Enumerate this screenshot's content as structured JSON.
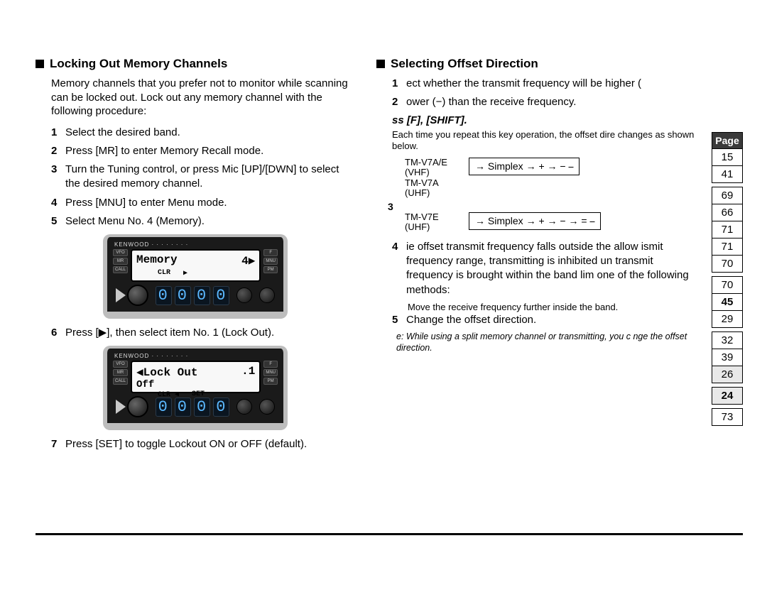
{
  "left": {
    "heading": "Locking Out Memory Channels",
    "intro": "Memory channels that you prefer not to monitor while scanning can be locked out. Lock out any memory channel with the following procedure:",
    "steps": [
      "Select the desired band.",
      "Press [MR] to enter Memory Recall mode.",
      "Turn the Tuning control, or press Mic [UP]/[DWN] to select the desired memory channel.",
      "Press [MNU] to enter Menu mode.",
      "Select Menu No. 4 (Memory).",
      "Press [▶], then select item No. 1 (Lock Out).",
      "Press [SET] to toggle Lockout ON or OFF (default)."
    ],
    "lcd1_line1_left": "Memory",
    "lcd1_line1_right": "4▶",
    "lcd1_line2_a": "CLR",
    "lcd1_line2_b": "▶",
    "lcd2_line1_left": "◀Lock Out",
    "lcd2_line1_right": ".1",
    "lcd2_line2_left": "Off",
    "lcd2_line3_a": "CLR  ◀",
    "lcd2_line3_b": "SET",
    "digits": [
      "0",
      "0",
      "0",
      "0"
    ],
    "digits2": [
      "0",
      "0",
      "0",
      "0"
    ],
    "side_l": [
      "VFO",
      "MR",
      "CALL"
    ],
    "side_r": [
      "F",
      "MNU",
      "PM"
    ]
  },
  "right": {
    "heading": "Selecting Offset Direction",
    "steps_a": [
      "ect whether the transmit frequency will be higher (",
      "ower (−) than the receive frequency."
    ],
    "sub": "ss [F], [SHIFT].",
    "note1": "Each time you repeat this key operation, the offset dire changes as shown below.",
    "diag_label_1a": "TM-V7A/E",
    "diag_label_1b": "(VHF)",
    "diag_label_1c": "TM-V7A",
    "diag_label_1d": "(UHF)",
    "diag_box_1": "→ Simplex →  +  →  −  ⎯",
    "diag_label_2a": "TM-V7E",
    "diag_label_2b": "(UHF)",
    "diag_box_2": "→ Simplex → + → − → = ⎯",
    "para2": "ie offset transmit frequency falls outside the allow ismit frequency range, transmitting is inhibited un transmit frequency is brought within the band lim one of the following methods:",
    "sub_a": "Move the receive frequency further inside the band.",
    "sub_b": "Change the offset direction.",
    "note2": "e:  While using a split memory channel or transmitting, you c nge the offset direction."
  },
  "page_sidebar": {
    "head": "Page",
    "cells": [
      {
        "v": "15"
      },
      {
        "v": "41"
      },
      {
        "v": ""
      },
      {
        "v": "69"
      },
      {
        "v": "66"
      },
      {
        "v": "71"
      },
      {
        "v": "71"
      },
      {
        "v": "70"
      },
      {
        "v": ""
      },
      {
        "v": "70"
      },
      {
        "v": "45",
        "bold": true
      },
      {
        "v": "29"
      },
      {
        "v": ""
      },
      {
        "v": "32"
      },
      {
        "v": "39"
      },
      {
        "v": "26",
        "shaded": true
      },
      {
        "v": ""
      },
      {
        "v": "24",
        "shaded": true,
        "bold": true
      },
      {
        "v": ""
      },
      {
        "v": "73"
      }
    ]
  }
}
